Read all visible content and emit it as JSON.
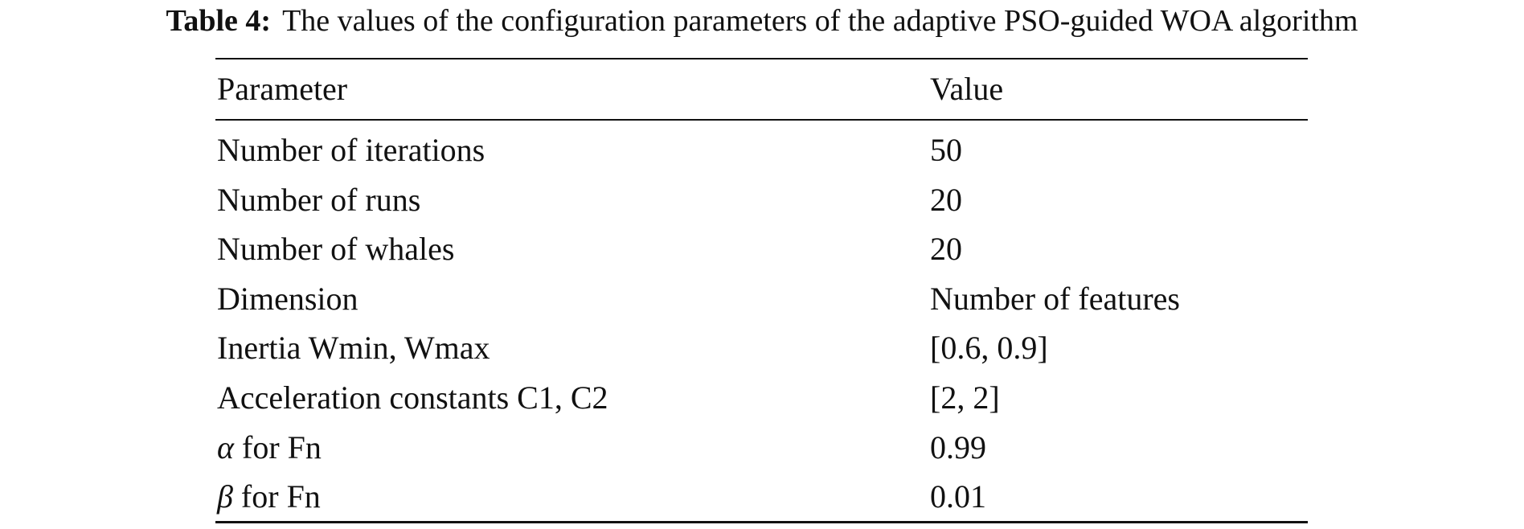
{
  "caption": {
    "label": "Table 4:",
    "text": "The values of the configuration parameters of the adaptive PSO-guided WOA algorithm"
  },
  "table": {
    "header": [
      "Parameter",
      "Value"
    ],
    "rows": [
      [
        "Number of iterations",
        "50"
      ],
      [
        "Number of runs",
        "20"
      ],
      [
        "Number of whales",
        "20"
      ],
      [
        "Dimension",
        "Number of features"
      ],
      [
        "Inertia Wmin, Wmax",
        "[0.6, 0.9]"
      ],
      [
        "Acceleration constants C1, C2",
        "[2, 2]"
      ],
      [
        "α for Fn",
        "0.99"
      ],
      [
        "β for Fn",
        "0.01"
      ]
    ]
  }
}
